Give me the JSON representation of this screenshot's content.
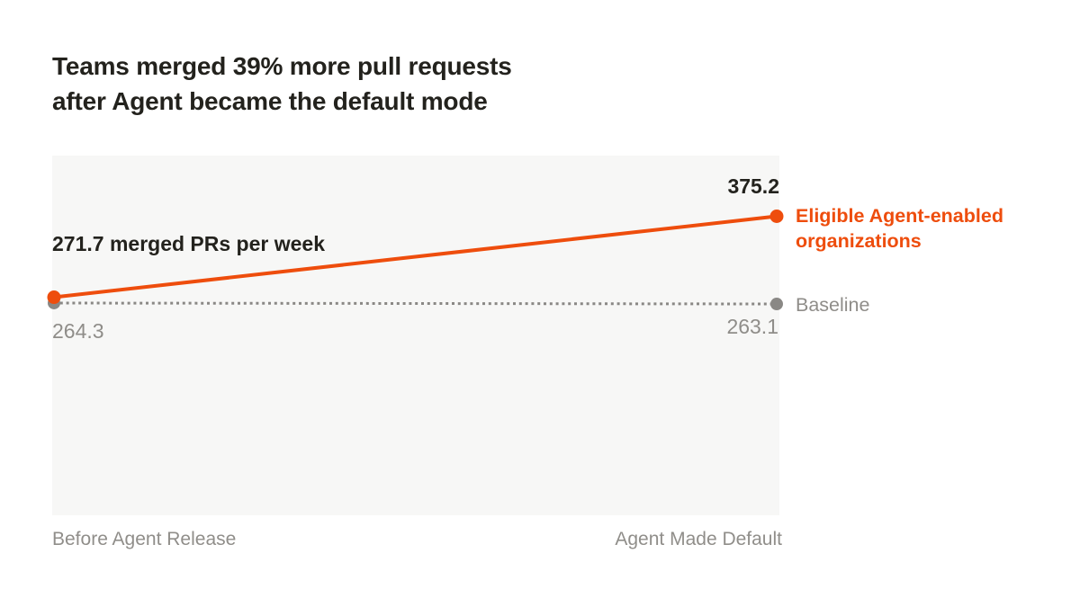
{
  "title": {
    "line1": "Teams merged 39% more pull requests",
    "line2": "after Agent became the default mode"
  },
  "annotations": {
    "start_label": "271.7 merged PRs per week",
    "end_value_label": "375.2",
    "baseline_start_label": "264.3",
    "baseline_end_label": "263.1"
  },
  "colors": {
    "accent_orange": "#EE4D0D",
    "baseline_gray": "#8A8885",
    "text_dark": "#23221D",
    "text_gray": "#8F8D89",
    "plot_background": "#F7F7F6",
    "page_background": "#FFFFFF"
  },
  "chart_data": {
    "type": "line",
    "categories": [
      "Before Agent Release",
      "Agent Made Default"
    ],
    "series": [
      {
        "name": "Eligible Agent-enabled organizations",
        "values": [
          271.7,
          375.2
        ],
        "color": "#EE4D0D",
        "line_style": "solid"
      },
      {
        "name": "Baseline",
        "values": [
          264.3,
          263.1
        ],
        "color": "#8A8885",
        "line_style": "dotted"
      }
    ],
    "title": "Teams merged 39% more pull requests after Agent became the default mode",
    "xlabel": "",
    "ylabel": "merged PRs per week",
    "grid": false,
    "legend_position": "right",
    "point_value_labels": [
      375.2,
      264.3,
      263.1
    ],
    "pct_change_headline": "39%"
  }
}
